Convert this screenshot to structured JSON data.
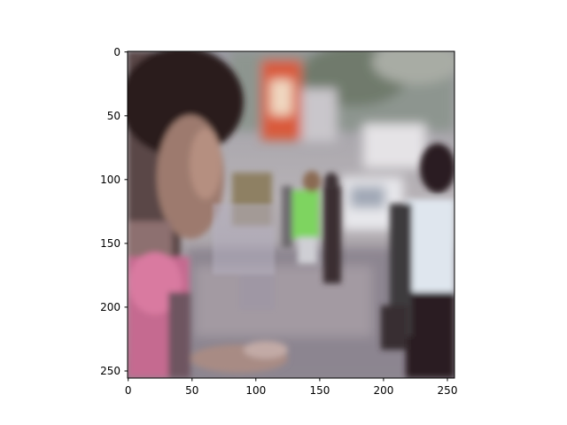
{
  "figure": {
    "image_description_tag": "photo",
    "x_axis": {
      "range": [
        0,
        256
      ],
      "ticks": [
        {
          "value": 0,
          "label": "0"
        },
        {
          "value": 50,
          "label": "50"
        },
        {
          "value": 100,
          "label": "100"
        },
        {
          "value": 150,
          "label": "150"
        },
        {
          "value": 200,
          "label": "200"
        },
        {
          "value": 250,
          "label": "250"
        }
      ]
    },
    "y_axis": {
      "range": [
        0,
        256
      ],
      "inverted": true,
      "ticks": [
        {
          "value": 0,
          "label": "0"
        },
        {
          "value": 50,
          "label": "50"
        },
        {
          "value": 100,
          "label": "100"
        },
        {
          "value": 150,
          "label": "150"
        },
        {
          "value": 200,
          "label": "200"
        },
        {
          "value": 250,
          "label": "250"
        }
      ]
    },
    "colors": {
      "axis": "#000000",
      "background": "#ffffff"
    }
  }
}
